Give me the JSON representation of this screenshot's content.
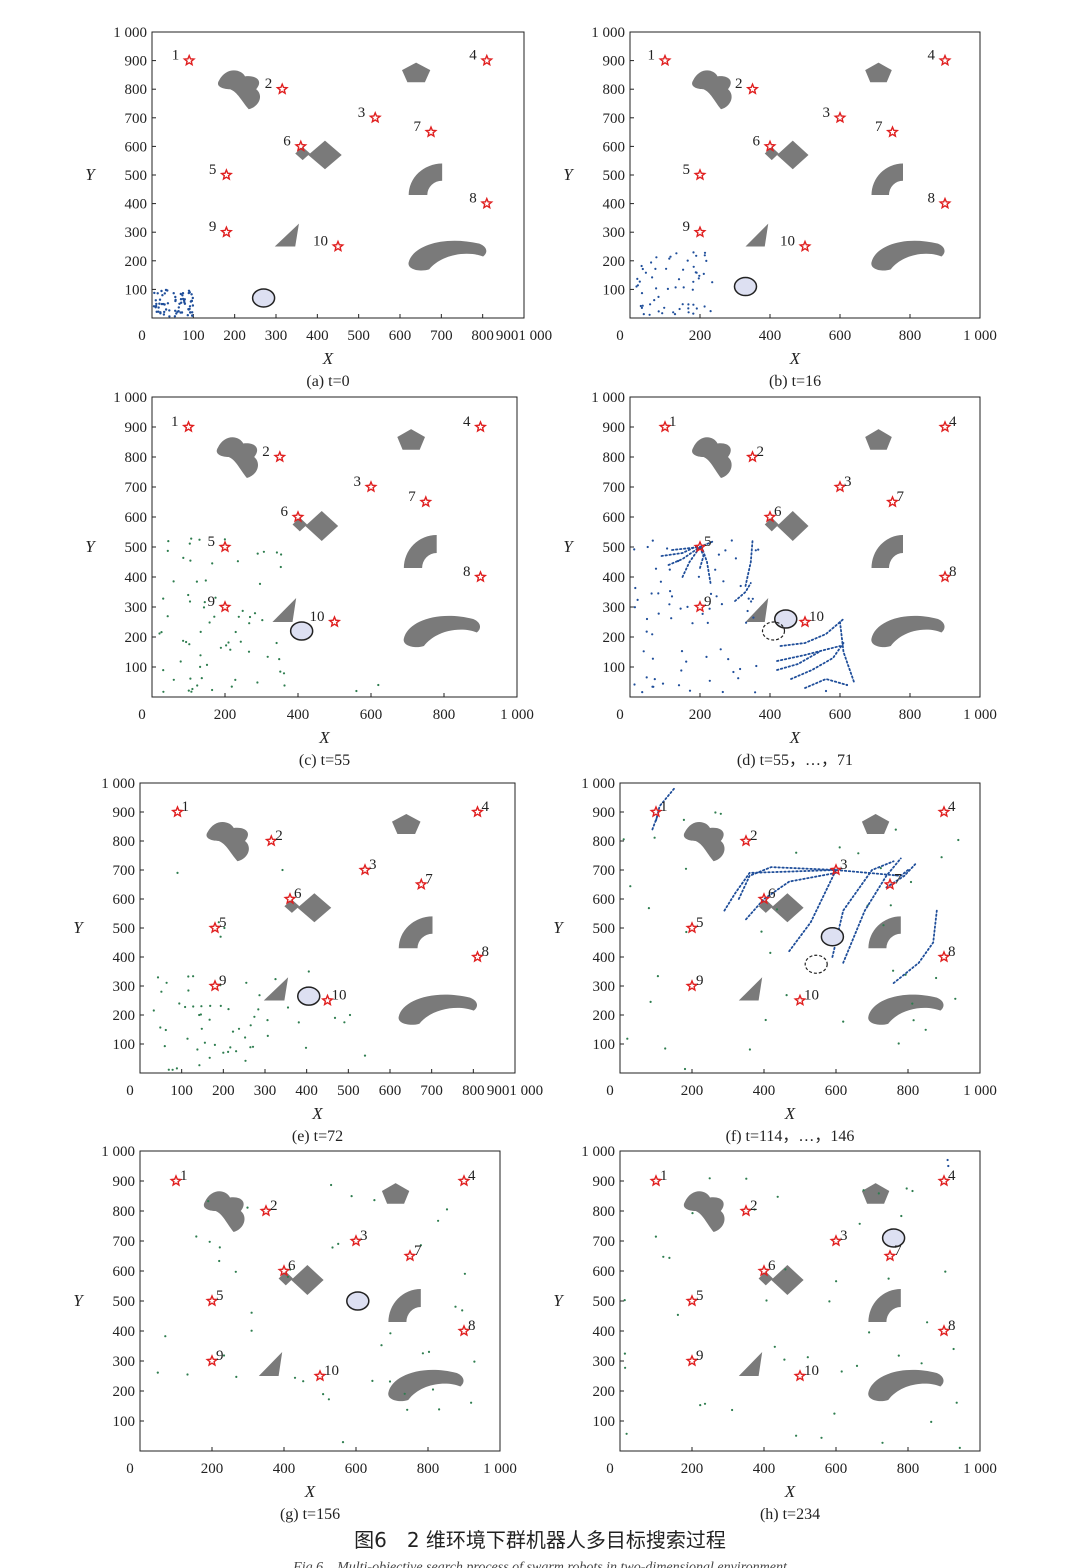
{
  "figure": {
    "caption_cn": "图6　2 维环境下群机器人多目标搜索过程",
    "caption_en": "Fig.6　Multi-objective search process of swarm robots in two-dimensional environment"
  },
  "colors": {
    "target": "#e02020",
    "obstacle": "#7a7a7a",
    "robot": "#1f4e9a",
    "robot_green": "#2e7d4f",
    "ellipse_fill": "#dde0f2",
    "ellipse_stroke": "#222222",
    "axis": "#222222"
  },
  "chart_data": [
    {
      "id": "a",
      "type": "scatter",
      "caption": "(a) t=0",
      "xlabel": "X",
      "ylabel": "Y",
      "xlim": [
        0,
        1000
      ],
      "ylim": [
        0,
        1000
      ],
      "xticks": [
        "0",
        "100",
        "200",
        "300",
        "400",
        "500",
        "600",
        "700",
        "800",
        "9001 000"
      ],
      "yticks": [
        "100",
        "200",
        "300",
        "400",
        "500",
        "600",
        "700",
        "800",
        "900",
        "1 000"
      ],
      "label_side": "left",
      "ellipse": {
        "x": 300,
        "y": 70
      },
      "dashed_ellipse": null,
      "swarm": "corner_small",
      "trails": []
    },
    {
      "id": "b",
      "type": "scatter",
      "caption": "(b) t=16",
      "xlabel": "X",
      "ylabel": "Y",
      "xlim": [
        0,
        1000
      ],
      "ylim": [
        0,
        1000
      ],
      "xticks": [
        "0",
        "200",
        "400",
        "600",
        "800",
        "1 000"
      ],
      "yticks": [
        "100",
        "200",
        "300",
        "400",
        "500",
        "600",
        "700",
        "800",
        "900",
        "1 000"
      ],
      "label_side": "left",
      "ellipse": {
        "x": 330,
        "y": 110
      },
      "dashed_ellipse": null,
      "swarm": "corner_large",
      "trails": []
    },
    {
      "id": "c",
      "type": "scatter",
      "caption": "(c) t=55",
      "xlabel": "X",
      "ylabel": "Y",
      "xlim": [
        0,
        1000
      ],
      "ylim": [
        0,
        1000
      ],
      "xticks": [
        "0",
        "200",
        "400",
        "600",
        "800",
        "1 000"
      ],
      "yticks": [
        "100",
        "200",
        "300",
        "400",
        "500",
        "600",
        "700",
        "800",
        "900",
        "1 000"
      ],
      "label_side": "left",
      "ellipse": {
        "x": 410,
        "y": 220
      },
      "dashed_ellipse": null,
      "swarm": "spread_sw",
      "trails": []
    },
    {
      "id": "d",
      "type": "scatter",
      "caption": "(d) t=55，…，71",
      "xlabel": "X",
      "ylabel": "Y",
      "xlim": [
        0,
        1000
      ],
      "ylim": [
        0,
        1000
      ],
      "xticks": [
        "0",
        "200",
        "400",
        "600",
        "800",
        "1 000"
      ],
      "yticks": [
        "100",
        "200",
        "300",
        "400",
        "500",
        "600",
        "700",
        "800",
        "900",
        "1 000"
      ],
      "label_side": "right",
      "ellipse": {
        "x": 445,
        "y": 260
      },
      "dashed_ellipse": {
        "x": 410,
        "y": 220
      },
      "swarm": "spread_sw_blue",
      "trails": "d"
    },
    {
      "id": "e",
      "type": "scatter",
      "caption": "(e) t=72",
      "xlabel": "X",
      "ylabel": "Y",
      "xlim": [
        0,
        1000
      ],
      "ylim": [
        0,
        1000
      ],
      "xticks": [
        "0",
        "100",
        "200",
        "300",
        "400",
        "500",
        "600",
        "700",
        "800",
        "9001 000"
      ],
      "yticks": [
        "100",
        "200",
        "300",
        "400",
        "500",
        "600",
        "700",
        "800",
        "900",
        "1 000"
      ],
      "label_side": "right",
      "ellipse": {
        "x": 450,
        "y": 265
      },
      "dashed_ellipse": null,
      "swarm": "spread_e",
      "trails": []
    },
    {
      "id": "f",
      "type": "scatter",
      "caption": "(f) t=114，…，146",
      "xlabel": "X",
      "ylabel": "Y",
      "xlim": [
        0,
        1000
      ],
      "ylim": [
        0,
        1000
      ],
      "xticks": [
        "0",
        "200",
        "400",
        "600",
        "800",
        "1 000"
      ],
      "yticks": [
        "100",
        "200",
        "300",
        "400",
        "500",
        "600",
        "700",
        "800",
        "900",
        "1 000"
      ],
      "label_side": "right",
      "ellipse": {
        "x": 590,
        "y": 470
      },
      "dashed_ellipse": {
        "x": 545,
        "y": 375
      },
      "swarm": "sparse",
      "trails": "f"
    },
    {
      "id": "g",
      "type": "scatter",
      "caption": "(g) t=156",
      "xlabel": "X",
      "ylabel": "Y",
      "xlim": [
        0,
        1000
      ],
      "ylim": [
        0,
        1000
      ],
      "xticks": [
        "0",
        "200",
        "400",
        "600",
        "800",
        "1 000"
      ],
      "yticks": [
        "100",
        "200",
        "300",
        "400",
        "500",
        "600",
        "700",
        "800",
        "900",
        "1 000"
      ],
      "label_side": "right",
      "ellipse": {
        "x": 605,
        "y": 500
      },
      "dashed_ellipse": null,
      "swarm": "sparse2",
      "trails": []
    },
    {
      "id": "h",
      "type": "scatter",
      "caption": "(h) t=234",
      "xlabel": "X",
      "ylabel": "Y",
      "xlim": [
        0,
        1000
      ],
      "ylim": [
        0,
        1000
      ],
      "xticks": [
        "0",
        "200",
        "400",
        "600",
        "800",
        "1 000"
      ],
      "yticks": [
        "100",
        "200",
        "300",
        "400",
        "500",
        "600",
        "700",
        "800",
        "900",
        "1 000"
      ],
      "label_side": "right",
      "ellipse": {
        "x": 760,
        "y": 710
      },
      "dashed_ellipse": null,
      "swarm": "sparse3",
      "trails": []
    }
  ],
  "targets": [
    {
      "label": "1",
      "x": 100,
      "y": 900
    },
    {
      "label": "2",
      "x": 350,
      "y": 800
    },
    {
      "label": "3",
      "x": 600,
      "y": 700
    },
    {
      "label": "4",
      "x": 900,
      "y": 900
    },
    {
      "label": "5",
      "x": 200,
      "y": 500
    },
    {
      "label": "6",
      "x": 400,
      "y": 600
    },
    {
      "label": "7",
      "x": 750,
      "y": 650
    },
    {
      "label": "8",
      "x": 900,
      "y": 400
    },
    {
      "label": "9",
      "x": 200,
      "y": 300
    },
    {
      "label": "10",
      "x": 500,
      "y": 250
    }
  ]
}
